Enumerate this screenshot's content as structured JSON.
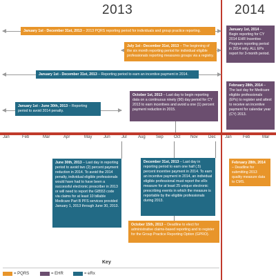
{
  "years": {
    "left": "2013",
    "right": "2014"
  },
  "months": [
    "Jan",
    "Feb",
    "Mar",
    "Apr",
    "May",
    "Jun",
    "Jul",
    "Aug",
    "Sep",
    "Oct",
    "Nov",
    "Dec",
    "Jan",
    "Feb",
    "Mar"
  ],
  "colors": {
    "pqrs": "#e8952a",
    "ehr": "#6b4e6f",
    "erx": "#226a85",
    "timeline": "#c0392b"
  },
  "events": {
    "pqrs_2013": {
      "date": "January 1st - December 31st, 2013",
      "text": " – 2013 PQRS reporting period for individuals and group practice reporting."
    },
    "pqrs_six_month": {
      "date": "July 1st - December 31st, 2013",
      "text": " – The beginning of the six month reporting period for individual eligible professionals reporting measures groups via a registry."
    },
    "erx_incentive": {
      "date": "January 1st - December 31st, 2013",
      "text": " – Reporting period to earn an incentive payment in 2014."
    },
    "erx_2014_penalty": {
      "date": "January 1st - June 30th, 2013",
      "text": " – Reporting period to avoid 2014 penalty."
    },
    "oct1_erx": {
      "date": "October 1st, 2013",
      "text": " – Last day to begin reporting data on a continuous ninety (90) day period for CY 2013 to earn incentives and avoid a one (1) percent payment reduction in 2015."
    },
    "jun30_erx": {
      "date": "June 30th, 2013",
      "text": " – Last day in reporting period to avoid two (2) percent payment reduction in 2014. To avoid the 2014 penalty, individual eligible professionals would have had to have been a successful electronic prescriber in 2013 or will need to report the G8553 code via claims for at least 10 billable Medicare Part B PFS services provided January 1, 2013 through June 30, 2013."
    },
    "dec31_erx": {
      "date": "December 31st, 2013",
      "text": " – Last day in reporting period to earn one half (.5) percent incentive payment in 2014. To earn an incentive payment in 2014, an individual eligible professional must report the eRx measure for at least 25 unique electronic prescribing events in which the measure is reportable by the eligible professionals during 2013."
    },
    "oct15_pqrs": {
      "date": "October 15th, 2013",
      "text": " – Deadline to elect for administrative claims-based reporting and to register for the Group Practice Reporting Option (GPRO)."
    },
    "jan1_2014_ehr": {
      "date": "January 1st, 2014",
      "text": " – Begin reporting for CY 2014 EHR Incentive Program reporting period in 2014 only. ALL EPs report for 3-month period."
    },
    "feb28_ehr": {
      "date": "February 28th, 2014",
      "text": " – The last day for Medicare eligible professionals (EPs) to register and attest to receive an incentive payment for calendar year (CY) 2013."
    },
    "feb28_pqrs": {
      "date": "February 28th, 2014",
      "text": " – Deadline for submitting 2013 quality measure data to CMS."
    }
  },
  "key": {
    "title": "Key",
    "items": [
      {
        "label": "= PQRS",
        "color": "#e8952a"
      },
      {
        "label": "= EHR",
        "color": "#6b4e6f"
      },
      {
        "label": "= eRx",
        "color": "#226a85"
      }
    ]
  }
}
